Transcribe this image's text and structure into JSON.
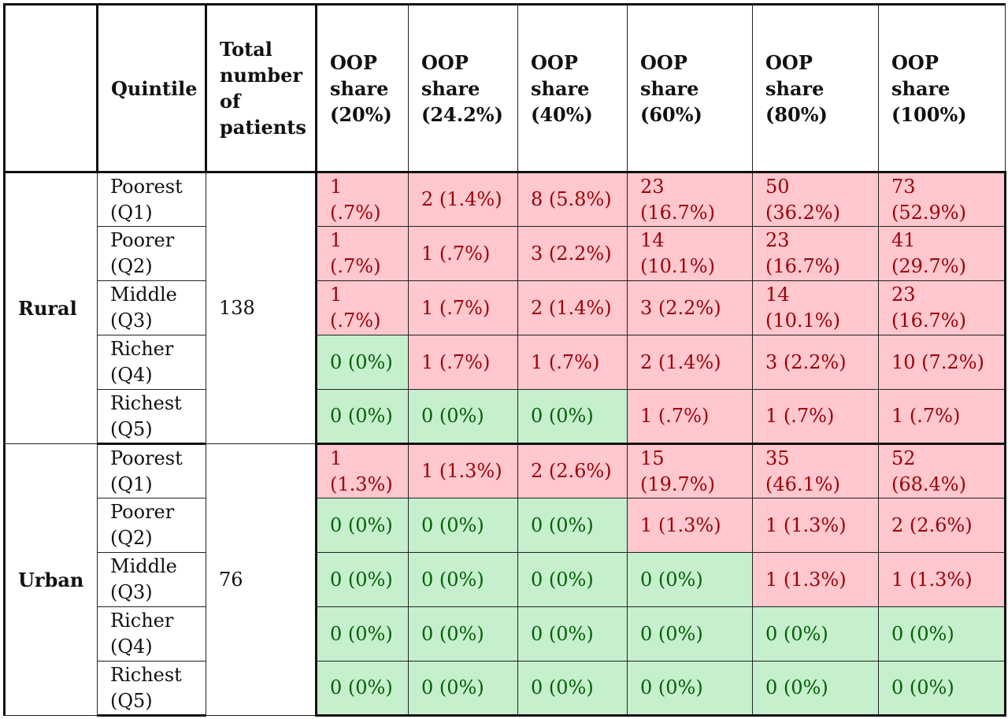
{
  "headers": {
    "area": "",
    "quintile": "Quintile",
    "total": "Total number of patients",
    "oop": [
      "OOP share (20%)",
      "OOP share (24.2%)",
      "OOP share (40%)",
      "OOP share (60%)",
      "OOP share (80%)",
      "OOP share (100%)"
    ]
  },
  "colors": {
    "red_bg": "#ffc7ce",
    "red_text": "#9c0006",
    "green_bg": "#c6efce",
    "green_text": "#006100"
  },
  "groups": [
    {
      "area": "Rural",
      "total": "138",
      "rows": [
        {
          "quintile": "Poorest (Q1)",
          "cells": [
            {
              "v": "1 (.7%)",
              "s": "red"
            },
            {
              "v": "2 (1.4%)",
              "s": "red"
            },
            {
              "v": "8 (5.8%)",
              "s": "red"
            },
            {
              "v": "23 (16.7%)",
              "s": "red"
            },
            {
              "v": "50 (36.2%)",
              "s": "red"
            },
            {
              "v": "73 (52.9%)",
              "s": "red"
            }
          ]
        },
        {
          "quintile": "Poorer (Q2)",
          "cells": [
            {
              "v": "1 (.7%)",
              "s": "red"
            },
            {
              "v": "1 (.7%)",
              "s": "red"
            },
            {
              "v": "3 (2.2%)",
              "s": "red"
            },
            {
              "v": "14 (10.1%)",
              "s": "red"
            },
            {
              "v": "23 (16.7%)",
              "s": "red"
            },
            {
              "v": "41 (29.7%)",
              "s": "red"
            }
          ]
        },
        {
          "quintile": "Middle (Q3)",
          "cells": [
            {
              "v": "1 (.7%)",
              "s": "red"
            },
            {
              "v": "1 (.7%)",
              "s": "red"
            },
            {
              "v": "2 (1.4%)",
              "s": "red"
            },
            {
              "v": "3 (2.2%)",
              "s": "red"
            },
            {
              "v": "14 (10.1%)",
              "s": "red"
            },
            {
              "v": "23 (16.7%)",
              "s": "red"
            }
          ]
        },
        {
          "quintile": "Richer (Q4)",
          "cells": [
            {
              "v": "0 (0%)",
              "s": "green"
            },
            {
              "v": "1 (.7%)",
              "s": "red"
            },
            {
              "v": "1 (.7%)",
              "s": "red"
            },
            {
              "v": "2 (1.4%)",
              "s": "red"
            },
            {
              "v": "3 (2.2%)",
              "s": "red"
            },
            {
              "v": "10 (7.2%)",
              "s": "red"
            }
          ]
        },
        {
          "quintile": "Richest (Q5)",
          "cells": [
            {
              "v": "0 (0%)",
              "s": "green"
            },
            {
              "v": "0 (0%)",
              "s": "green"
            },
            {
              "v": "0 (0%)",
              "s": "green"
            },
            {
              "v": "1 (.7%)",
              "s": "red"
            },
            {
              "v": "1 (.7%)",
              "s": "red"
            },
            {
              "v": "1 (.7%)",
              "s": "red"
            }
          ]
        }
      ]
    },
    {
      "area": "Urban",
      "total": "76",
      "rows": [
        {
          "quintile": "Poorest (Q1)",
          "cells": [
            {
              "v": "1 (1.3%)",
              "s": "red"
            },
            {
              "v": "1 (1.3%)",
              "s": "red"
            },
            {
              "v": "2 (2.6%)",
              "s": "red"
            },
            {
              "v": "15 (19.7%)",
              "s": "red"
            },
            {
              "v": "35 (46.1%)",
              "s": "red"
            },
            {
              "v": "52 (68.4%)",
              "s": "red"
            }
          ]
        },
        {
          "quintile": "Poorer (Q2)",
          "cells": [
            {
              "v": "0 (0%)",
              "s": "green"
            },
            {
              "v": "0 (0%)",
              "s": "green"
            },
            {
              "v": "0 (0%)",
              "s": "green"
            },
            {
              "v": "1 (1.3%)",
              "s": "red"
            },
            {
              "v": "1 (1.3%)",
              "s": "red"
            },
            {
              "v": "2 (2.6%)",
              "s": "red"
            }
          ]
        },
        {
          "quintile": "Middle (Q3)",
          "cells": [
            {
              "v": "0 (0%)",
              "s": "green"
            },
            {
              "v": "0 (0%)",
              "s": "green"
            },
            {
              "v": "0 (0%)",
              "s": "green"
            },
            {
              "v": "0 (0%)",
              "s": "green"
            },
            {
              "v": "1 (1.3%)",
              "s": "red"
            },
            {
              "v": "1 (1.3%)",
              "s": "red"
            }
          ]
        },
        {
          "quintile": "Richer (Q4)",
          "cells": [
            {
              "v": "0 (0%)",
              "s": "green"
            },
            {
              "v": "0 (0%)",
              "s": "green"
            },
            {
              "v": "0 (0%)",
              "s": "green"
            },
            {
              "v": "0 (0%)",
              "s": "green"
            },
            {
              "v": "0 (0%)",
              "s": "green"
            },
            {
              "v": "0 (0%)",
              "s": "green"
            }
          ]
        },
        {
          "quintile": "Richest (Q5)",
          "cells": [
            {
              "v": "0 (0%)",
              "s": "green"
            },
            {
              "v": "0 (0%)",
              "s": "green"
            },
            {
              "v": "0 (0%)",
              "s": "green"
            },
            {
              "v": "0 (0%)",
              "s": "green"
            },
            {
              "v": "0 (0%)",
              "s": "green"
            },
            {
              "v": "0 (0%)",
              "s": "green"
            }
          ]
        }
      ]
    }
  ]
}
